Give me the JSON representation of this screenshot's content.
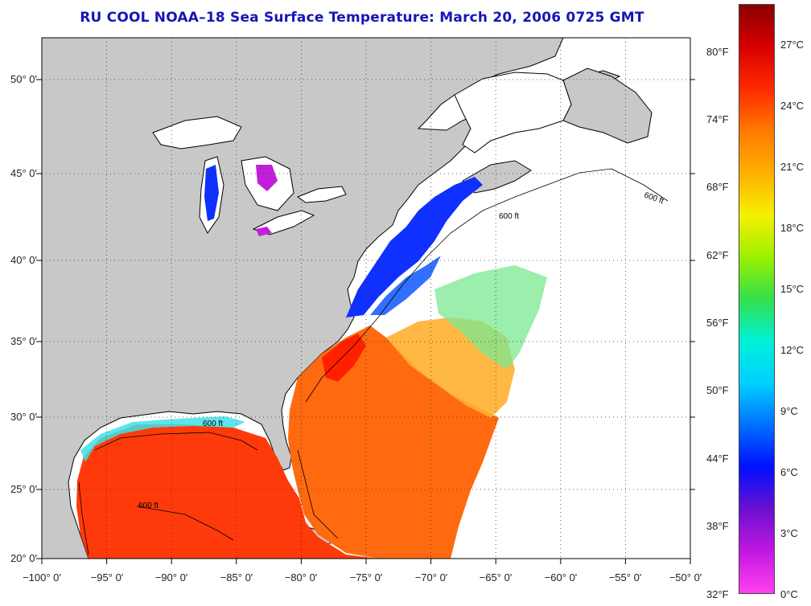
{
  "title": "RU COOL  NOAA–18  Sea Surface Temperature:  March 20, 2006 0725 GMT",
  "map": {
    "lon_range": [
      -100,
      -50
    ],
    "lat_range": [
      20,
      52
    ],
    "x_tick_labels": [
      "−100° 0'",
      "−95° 0'",
      "−90° 0'",
      "−85° 0'",
      "−80° 0'",
      "−75° 0'",
      "−70° 0'",
      "−65° 0'",
      "−60° 0'",
      "−55° 0'",
      "−50° 0'"
    ],
    "y_tick_labels": [
      "20° 0'",
      "25° 0'",
      "30° 0'",
      "35° 0'",
      "40° 0'",
      "45° 0'",
      "50° 0'"
    ],
    "grid": "dotted",
    "isobath_label": "600 ft",
    "land_color": "#c8c8c8",
    "no_data_color": "#ffffff"
  },
  "colorbar": {
    "fahrenheit_labels": [
      "80°F",
      "74°F",
      "68°F",
      "62°F",
      "56°F",
      "50°F",
      "44°F",
      "38°F",
      "32°F"
    ],
    "celsius_labels": [
      "27°C",
      "24°C",
      "21°C",
      "18°C",
      "15°C",
      "12°C",
      "9°C",
      "6°C",
      "3°C",
      "0°C"
    ],
    "colors": [
      "#8b0000",
      "#d80000",
      "#ff2a00",
      "#ff7a00",
      "#ffb000",
      "#f6f000",
      "#9cf000",
      "#33e04a",
      "#00f0d8",
      "#00d0ff",
      "#0070ff",
      "#0010ff",
      "#6a10d0",
      "#c018e0",
      "#ff40f0"
    ]
  }
}
